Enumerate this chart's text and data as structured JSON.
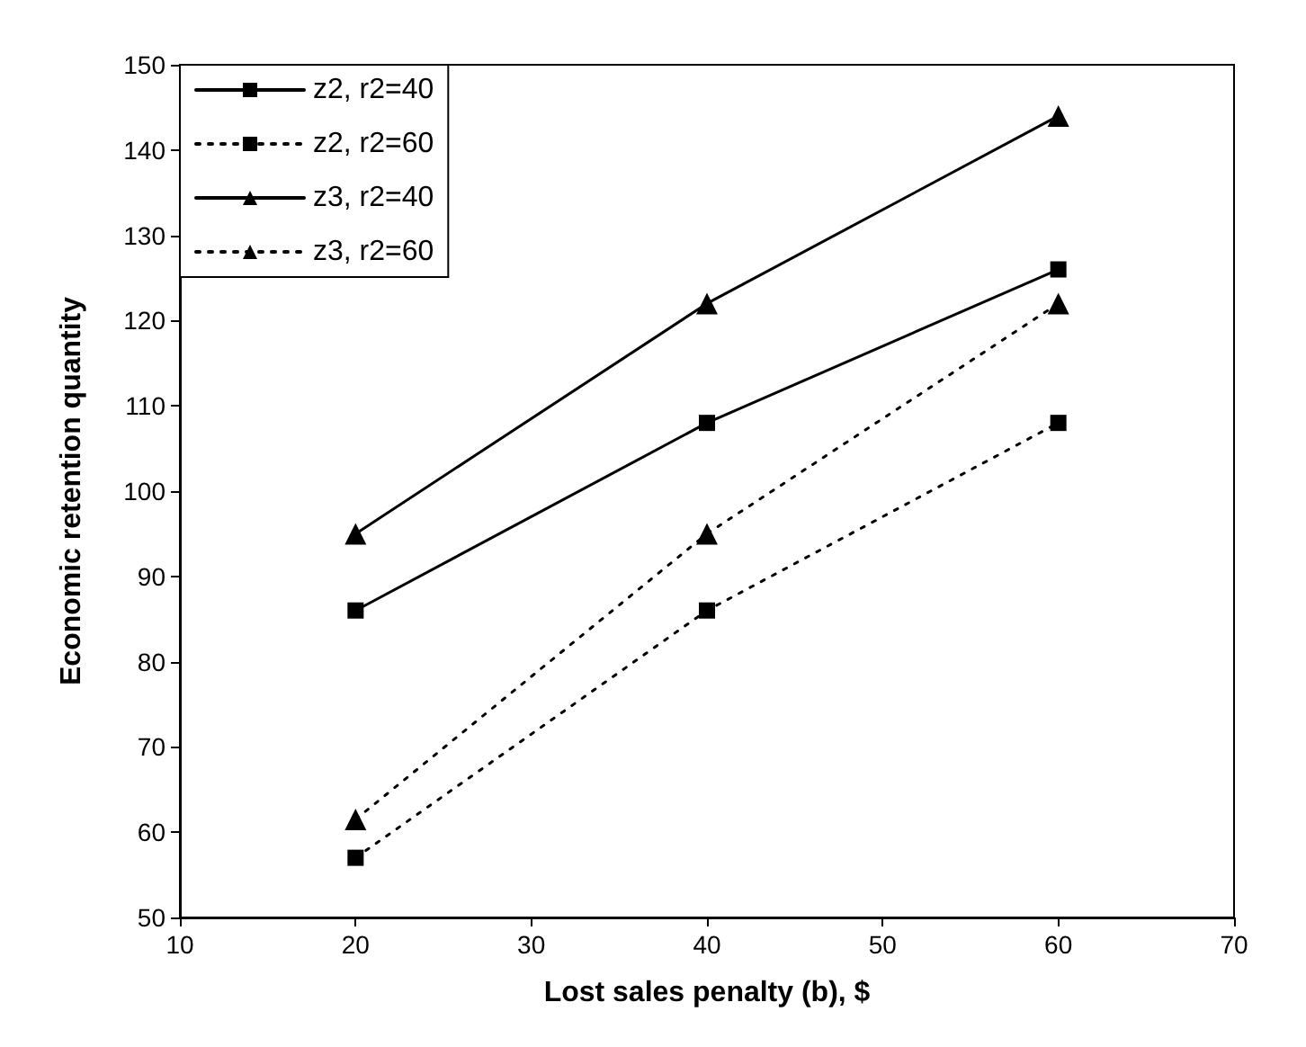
{
  "chart_data": {
    "type": "line",
    "xlabel": "Lost sales penalty (b), $",
    "ylabel": "Economic retention quantity",
    "x": [
      20,
      40,
      60
    ],
    "xlim": [
      10,
      70
    ],
    "xticks": [
      10,
      20,
      30,
      40,
      50,
      60,
      70
    ],
    "ylim": [
      50,
      150
    ],
    "yticks": [
      50,
      60,
      70,
      80,
      90,
      100,
      110,
      120,
      130,
      140,
      150
    ],
    "grid": false,
    "legend": "top left",
    "series": [
      {
        "name": "z2, r2=40",
        "color": "#000000",
        "values": [
          86,
          108,
          126
        ],
        "marker": "square",
        "line_style": "solid"
      },
      {
        "name": "z2, r2=60",
        "color": "#000000",
        "values": [
          57,
          86,
          108
        ],
        "marker": "square",
        "line_style": "dotted"
      },
      {
        "name": "z3, r2=40",
        "color": "#000000",
        "values": [
          95,
          122,
          144
        ],
        "marker": "triangle",
        "line_style": "solid"
      },
      {
        "name": "z3, r2=60",
        "color": "#000000",
        "values": [
          61.5,
          95,
          122
        ],
        "marker": "triangle",
        "line_style": "dotted"
      }
    ]
  }
}
